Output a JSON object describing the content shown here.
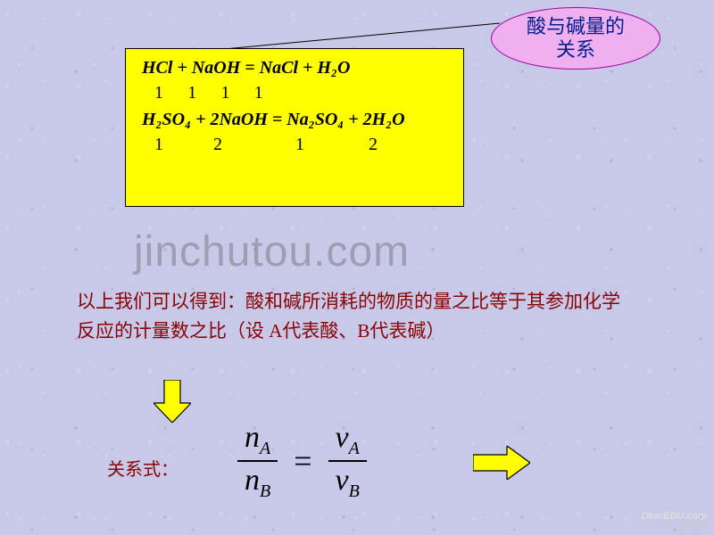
{
  "bubble": {
    "text": "酸与碱量的\n关系"
  },
  "box": {
    "eq1": "HCl + NaOH = NaCl + H₂O",
    "coeff1": [
      "1",
      "1",
      "1",
      "1"
    ],
    "eq2": "H₂SO₄ + 2NaOH = Na₂SO₄ + 2H₂O",
    "coeff2": [
      "1",
      "2",
      "1",
      "2"
    ],
    "coeff2_gaps": [
      0,
      56,
      82,
      72
    ],
    "bg_color": "#ffff00",
    "border_color": "#000000"
  },
  "watermark": "jinchutou.com",
  "explain": "以上我们可以得到：酸和碱所消耗的物质的量之比等于其参加化学反应的计量数之比（设 A代表酸、B代表碱）",
  "relation_label": "关系式：",
  "formula": {
    "left_num_sym": "n",
    "left_num_sub": "A",
    "left_den_sym": "n",
    "left_den_sub": "B",
    "right_num_sym": "ν",
    "right_num_sub": "A",
    "right_den_sym": "ν",
    "right_den_sub": "B"
  },
  "colors": {
    "background": "#c8c8e8",
    "bubble_fill": "#f0b0f0",
    "bubble_border": "#a000a0",
    "bubble_text": "#002090",
    "body_text": "#8b0000",
    "arrow_fill": "#ffff00",
    "arrow_stroke": "#000000"
  },
  "logo": {
    "en": "DearEDU.com",
    "cn": "第二教育网"
  }
}
